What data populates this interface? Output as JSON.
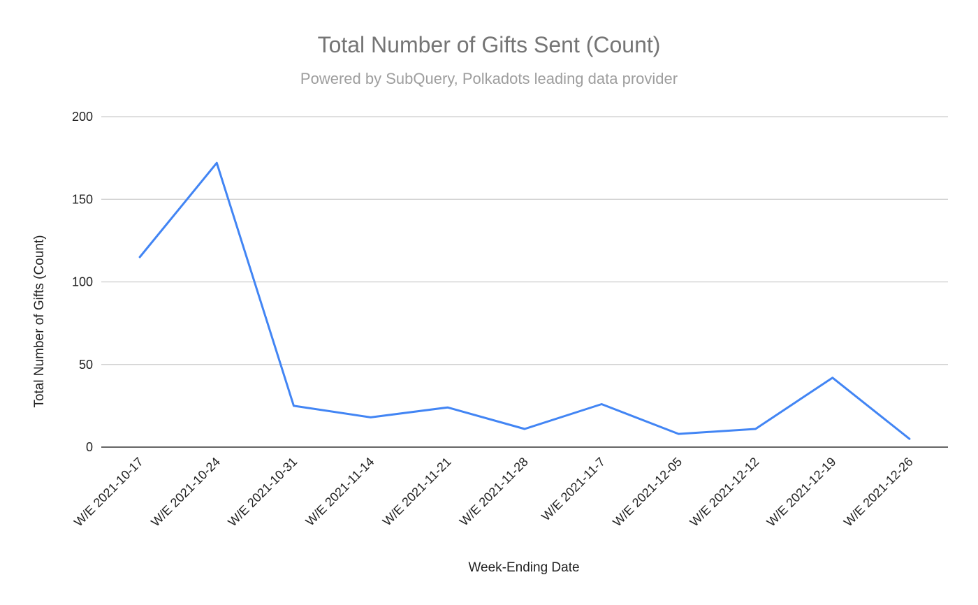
{
  "chart_data": {
    "type": "line",
    "title": "Total Number of Gifts Sent (Count)",
    "subtitle": "Powered by SubQuery, Polkadots leading data provider",
    "xlabel": "Week-Ending Date",
    "ylabel": "Total Number of Gifts (Count)",
    "ylim": [
      0,
      200
    ],
    "yticks": [
      0,
      50,
      100,
      150,
      200
    ],
    "grid": true,
    "legend": "none",
    "categories": [
      "W/E 2021-10-17",
      "W/E 2021-10-24",
      "W/E 2021-10-31",
      "W/E 2021-11-14",
      "W/E 2021-11-21",
      "W/E 2021-11-28",
      "W/E 2021-11-7",
      "W/E 2021-12-05",
      "W/E 2021-12-12",
      "W/E 2021-12-19",
      "W/E 2021-12-26"
    ],
    "series": [
      {
        "values": [
          115,
          172,
          25,
          18,
          24,
          11,
          26,
          8,
          11,
          42,
          5
        ],
        "color": "#4285f4"
      }
    ],
    "colors": {
      "line": "#4285f4",
      "grid": "#cccccc",
      "baseline": "#333333"
    }
  }
}
